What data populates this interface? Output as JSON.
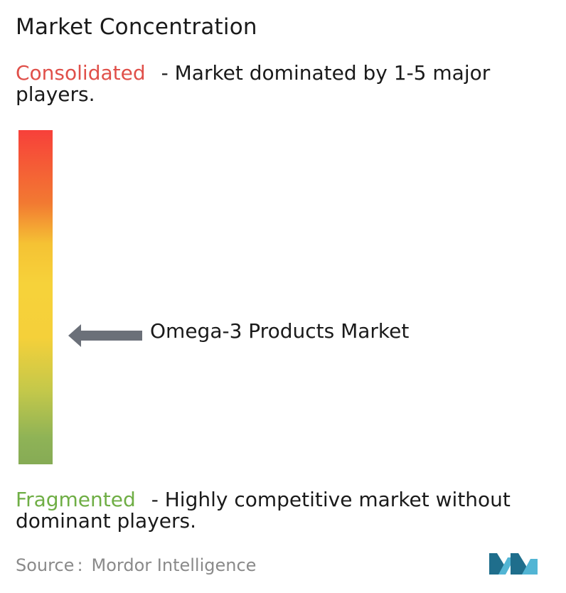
{
  "title": "Market Concentration",
  "consolidated": {
    "keyword": "Consolidated",
    "description": "- Market dominated by 1-5 major players."
  },
  "fragmented": {
    "keyword": "Fragmented",
    "description": "- Highly competitive market without dominant players."
  },
  "chart_data": {
    "type": "gradient-scale",
    "top_label": "Consolidated",
    "bottom_label": "Fragmented",
    "marker": {
      "label": "Omega-3 Products Market",
      "position_from_top": 0.6
    }
  },
  "source": {
    "prefix": "Source",
    "separator": ":",
    "name": "Mordor Intelligence"
  },
  "colors": {
    "consolidated": "#e0504a",
    "fragmented": "#6fae45",
    "arrow": "#6b7079",
    "logo_dark": "#1f6e8c",
    "logo_light": "#52b5d4"
  },
  "icons": {
    "marker": "left-arrow-icon",
    "brand": "mordor-intelligence-logo"
  }
}
